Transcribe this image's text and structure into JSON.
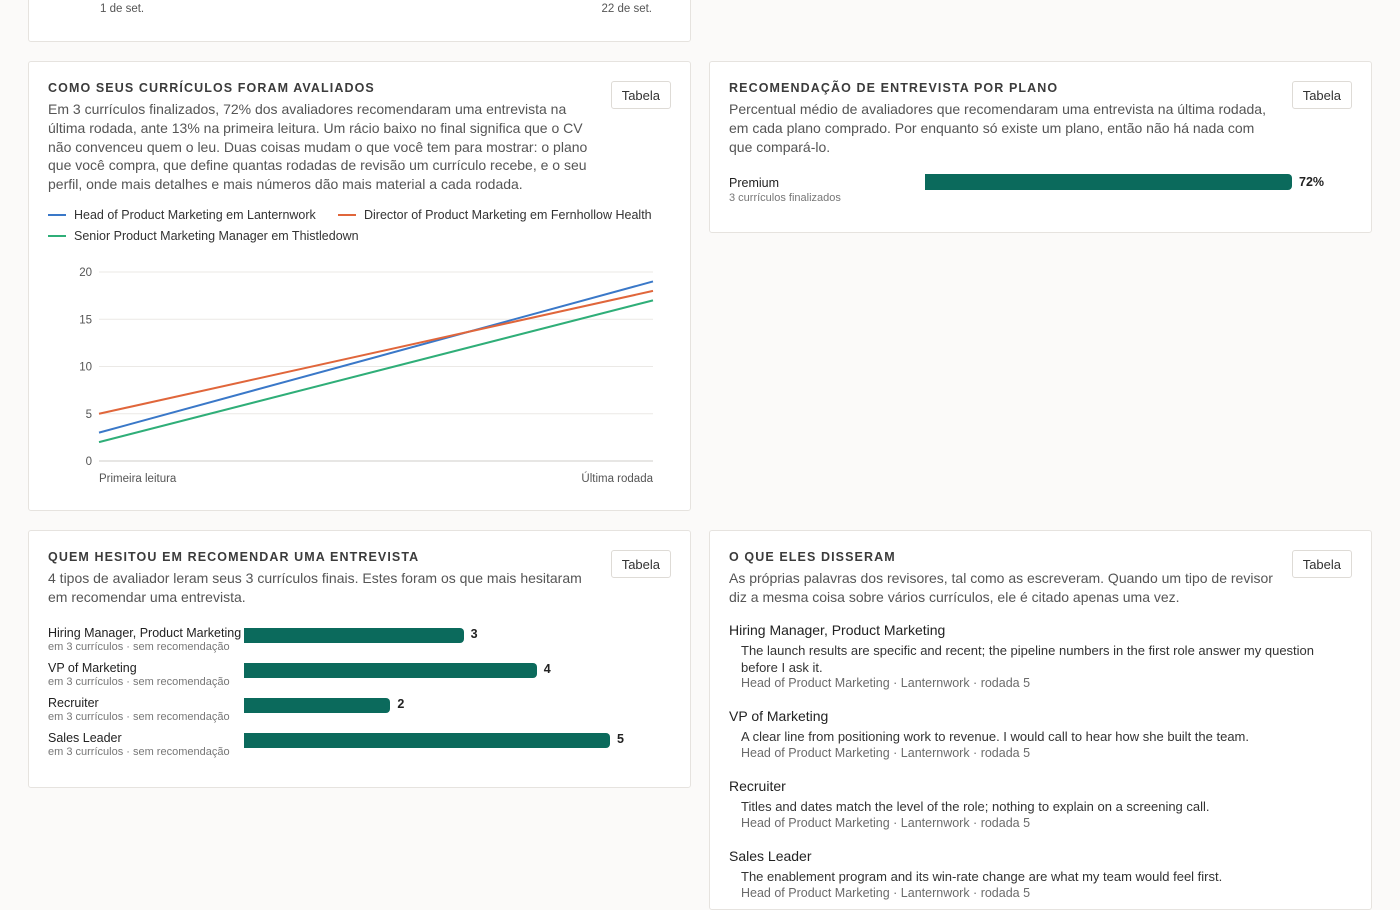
{
  "top_card": {
    "x_start": "1 de set.",
    "x_end": "22 de set."
  },
  "evaluated": {
    "title": "Como seus currículos foram avaliados",
    "description": "Em 3 currículos finalizados, 72% dos avaliadores recomendaram uma entrevista na última rodada, ante 13% na primeira leitura. Um rácio baixo no final significa que o CV não convenceu quem o leu. Duas coisas mudam o que você tem para mostrar: o plano que você compra, que define quantas rodadas de revisão um currículo recebe, e o seu perfil, onde mais detalhes e mais números dão mais material a cada rodada.",
    "table_label": "Tabela",
    "chart_data": {
      "type": "line",
      "x": [
        "Primeira leitura",
        "Última rodada"
      ],
      "ylim": [
        0,
        20
      ],
      "yticks": [
        0,
        5,
        10,
        15,
        20
      ],
      "series": [
        {
          "name": "Head of Product Marketing em Lanternwork",
          "values": [
            3,
            19
          ],
          "color": "#3a78c8"
        },
        {
          "name": "Director of Product Marketing em Fernhollow Health",
          "values": [
            5,
            18
          ],
          "color": "#e0663b"
        },
        {
          "name": "Senior Product Marketing Manager em Thistledown",
          "values": [
            2,
            17
          ],
          "color": "#2fae78"
        }
      ]
    }
  },
  "plan": {
    "title": "Recomendação de entrevista por plano",
    "description": "Percentual médio de avaliadores que recomendaram uma entrevista na última rodada, em cada plano comprado. Por enquanto só existe um plano, então não há nada com que compará-lo.",
    "table_label": "Tabela",
    "chart_data": {
      "type": "bar",
      "categories": [
        "Premium"
      ],
      "values": [
        72
      ],
      "value_labels": [
        "72%"
      ],
      "subtitles": [
        "3 currículos finalizados"
      ],
      "xlim": [
        0,
        72
      ]
    }
  },
  "hesitated": {
    "title": "Quem hesitou em recomendar uma entrevista",
    "description": "4 tipos de avaliador leram seus 3 currículos finais. Estes foram os que mais hesitaram em recomendar uma entrevista.",
    "table_label": "Tabela",
    "chart_data": {
      "type": "bar",
      "categories": [
        "Hiring Manager, Product Marketing",
        "VP of Marketing",
        "Recruiter",
        "Sales Leader"
      ],
      "values": [
        3,
        4,
        2,
        5
      ],
      "subtitles": [
        "em 3 currículos · sem recomendação",
        "em 3 currículos · sem recomendação",
        "em 3 currículos · sem recomendação",
        "em 3 currículos · sem recomendação"
      ],
      "xlim": [
        0,
        5
      ]
    }
  },
  "quotes": {
    "title": "O que eles disseram",
    "description": "As próprias palavras dos revisores, tal como as escreveram. Quando um tipo de revisor diz a mesma coisa sobre vários currículos, ele é citado apenas uma vez.",
    "table_label": "Tabela",
    "items": [
      {
        "reviewer": "Hiring Manager, Product Marketing",
        "text": "The launch results are specific and recent; the pipeline numbers in the first role answer my question before I ask it.",
        "source": "Head of Product Marketing · Lanternwork · rodada 5"
      },
      {
        "reviewer": "VP of Marketing",
        "text": "A clear line from positioning work to revenue. I would call to hear how she built the team.",
        "source": "Head of Product Marketing · Lanternwork · rodada 5"
      },
      {
        "reviewer": "Recruiter",
        "text": "Titles and dates match the level of the role; nothing to explain on a screening call.",
        "source": "Head of Product Marketing · Lanternwork · rodada 5"
      },
      {
        "reviewer": "Sales Leader",
        "text": "The enablement program and its win-rate change are what my team would feel first.",
        "source": "Head of Product Marketing · Lanternwork · rodada 5"
      }
    ]
  }
}
